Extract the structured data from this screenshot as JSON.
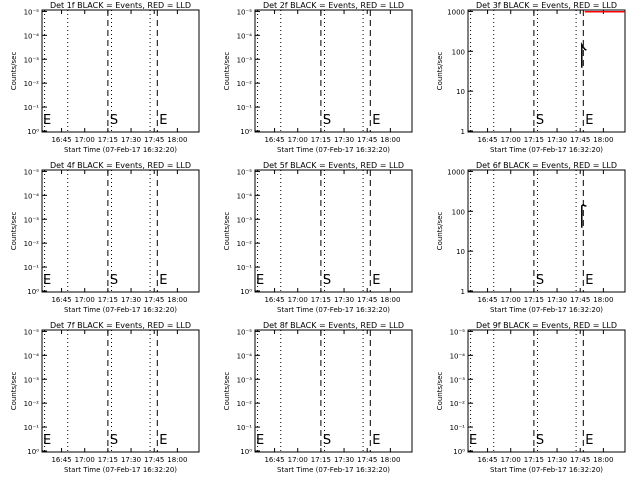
{
  "chart_data": [
    {
      "type": "line",
      "title": "Det 1f BLACK = Events, RED = LLD",
      "xlabel": "Start Time (07-Feb-17 16:32:20)",
      "ylabel": "Counts/sec",
      "yscale": "log",
      "y_ticks": [
        "10⁰",
        "10⁻¹",
        "10⁻²",
        "10⁻³",
        "10⁻⁴",
        "10⁻⁵"
      ],
      "ylim": [
        1,
        100000
      ],
      "x_ticks": [
        "16:45",
        "17:00",
        "17:15",
        "17:30",
        "17:45",
        "18:00"
      ],
      "xlim": [
        "16:32:20",
        "18:14"
      ],
      "markers": {
        "E1": "16:32:20",
        "S": "17:15",
        "E2": "17:47"
      },
      "series": []
    },
    {
      "type": "line",
      "title": "Det 2f BLACK = Events, RED = LLD",
      "xlabel": "Start Time (07-Feb-17 16:32:20)",
      "ylabel": "Counts/sec",
      "yscale": "log",
      "y_ticks": [
        "10⁰",
        "10⁻¹",
        "10⁻²",
        "10⁻³",
        "10⁻⁴",
        "10⁻⁵"
      ],
      "ylim": [
        1,
        100000
      ],
      "x_ticks": [
        "16:45",
        "17:00",
        "17:15",
        "17:30",
        "17:45",
        "18:00"
      ],
      "xlim": [
        "16:32:20",
        "18:14"
      ],
      "markers": {
        "S": "17:15",
        "E2": "17:47"
      },
      "series": []
    },
    {
      "type": "line",
      "title": "Det 3f BLACK = Events, RED = LLD",
      "xlabel": "Start Time (07-Feb-17 16:32:20)",
      "ylabel": "Counts/sec",
      "yscale": "log",
      "y_ticks": [
        "1",
        "10",
        "100",
        "1000"
      ],
      "ylim": [
        1,
        1100
      ],
      "x_ticks": [
        "16:45",
        "17:00",
        "17:15",
        "17:30",
        "17:45",
        "18:00"
      ],
      "xlim": [
        "16:32:20",
        "18:14"
      ],
      "markers": {
        "S": "17:15",
        "E2": "17:47"
      },
      "series": [
        {
          "color": "#000000",
          "x": [
            "17:46",
            "17:46",
            "17:47",
            "17:48",
            "17:49"
          ],
          "y": [
            40,
            150,
            130,
            115,
            110
          ]
        },
        {
          "color": "#ff0000",
          "x": [
            "17:48",
            "18:14"
          ],
          "y": [
            1000,
            1000
          ]
        }
      ]
    },
    {
      "type": "line",
      "title": "Det 4f BLACK = Events, RED = LLD",
      "xlabel": "Start Time (07-Feb-17 16:32:20)",
      "ylabel": "Counts/sec",
      "yscale": "log",
      "y_ticks": [
        "10⁰",
        "10⁻¹",
        "10⁻²",
        "10⁻³",
        "10⁻⁴",
        "10⁻⁵"
      ],
      "ylim": [
        1,
        100000
      ],
      "x_ticks": [
        "16:45",
        "17:00",
        "17:15",
        "17:30",
        "17:45",
        "18:00"
      ],
      "xlim": [
        "16:32:20",
        "18:14"
      ],
      "markers": {
        "E1": "16:32:20",
        "S": "17:15",
        "E2": "17:47"
      },
      "series": []
    },
    {
      "type": "line",
      "title": "Det 5f BLACK = Events, RED = LLD",
      "xlabel": "Start Time (07-Feb-17 16:32:20)",
      "ylabel": "Counts/sec",
      "yscale": "log",
      "y_ticks": [
        "10⁰",
        "10⁻¹",
        "10⁻²",
        "10⁻³",
        "10⁻⁴",
        "10⁻⁵"
      ],
      "ylim": [
        1,
        100000
      ],
      "x_ticks": [
        "16:45",
        "17:00",
        "17:15",
        "17:30",
        "17:45",
        "18:00"
      ],
      "xlim": [
        "16:32:20",
        "18:14"
      ],
      "markers": {
        "E1": "16:32:20",
        "S": "17:15",
        "E2": "17:47"
      },
      "series": []
    },
    {
      "type": "line",
      "title": "Det 6f BLACK = Events, RED = LLD",
      "xlabel": "Start Time (07-Feb-17 16:32:20)",
      "ylabel": "Counts/sec",
      "yscale": "log",
      "y_ticks": [
        "1",
        "10",
        "100",
        "1000"
      ],
      "ylim": [
        1,
        1100
      ],
      "x_ticks": [
        "16:45",
        "17:00",
        "17:15",
        "17:30",
        "17:45",
        "18:00"
      ],
      "xlim": [
        "16:32:20",
        "18:14"
      ],
      "markers": {
        "S": "17:15",
        "E2": "17:47"
      },
      "series": [
        {
          "color": "#000000",
          "x": [
            "17:46",
            "17:46",
            "17:47",
            "17:48",
            "17:49"
          ],
          "y": [
            40,
            140,
            150,
            140,
            140
          ]
        }
      ]
    },
    {
      "type": "line",
      "title": "Det 7f BLACK = Events, RED = LLD",
      "xlabel": "Start Time (07-Feb-17 16:32:20)",
      "ylabel": "Counts/sec",
      "yscale": "log",
      "y_ticks": [
        "10⁰",
        "10⁻¹",
        "10⁻²",
        "10⁻³",
        "10⁻⁴",
        "10⁻⁵"
      ],
      "ylim": [
        1,
        100000
      ],
      "x_ticks": [
        "16:45",
        "17:00",
        "17:15",
        "17:30",
        "17:45",
        "18:00"
      ],
      "xlim": [
        "16:32:20",
        "18:14"
      ],
      "markers": {
        "E1": "16:32:20",
        "S": "17:15",
        "E2": "17:47"
      },
      "series": []
    },
    {
      "type": "line",
      "title": "Det 8f BLACK = Events, RED = LLD",
      "xlabel": "Start Time (07-Feb-17 16:32:20)",
      "ylabel": "Counts/sec",
      "yscale": "log",
      "y_ticks": [
        "10⁰",
        "10⁻¹",
        "10⁻²",
        "10⁻³",
        "10⁻⁴",
        "10⁻⁵"
      ],
      "ylim": [
        1,
        100000
      ],
      "x_ticks": [
        "16:45",
        "17:00",
        "17:15",
        "17:30",
        "17:45",
        "18:00"
      ],
      "xlim": [
        "16:32:20",
        "18:14"
      ],
      "markers": {
        "E1": "16:32:20",
        "S": "17:15",
        "E2": "17:47"
      },
      "series": []
    },
    {
      "type": "line",
      "title": "Det 9f BLACK = Events, RED = LLD",
      "xlabel": "Start Time (07-Feb-17 16:32:20)",
      "ylabel": "Counts/sec",
      "yscale": "log",
      "y_ticks": [
        "10⁰",
        "10⁻¹",
        "10⁻²",
        "10⁻³",
        "10⁻⁴",
        "10⁻⁵"
      ],
      "ylim": [
        1,
        100000
      ],
      "x_ticks": [
        "16:45",
        "17:00",
        "17:15",
        "17:30",
        "17:45",
        "18:00"
      ],
      "xlim": [
        "16:32:20",
        "18:14"
      ],
      "markers": {
        "E1": "16:32:20",
        "S": "17:15",
        "E2": "17:47"
      },
      "series": []
    }
  ]
}
